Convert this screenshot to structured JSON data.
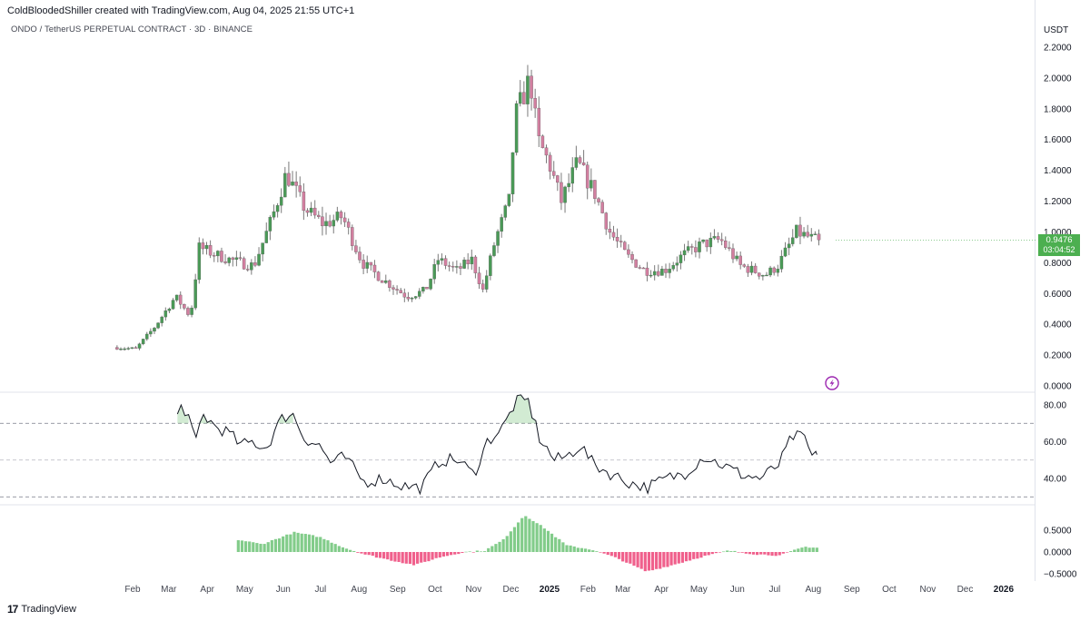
{
  "header": {
    "credit": "ColdBloodedShiller created with TradingView.com, Aug 04, 2025 21:55 UTC+1",
    "symbol": "ONDO / TetherUS PERPETUAL CONTRACT · 3D · BINANCE"
  },
  "footer": {
    "brand": "TradingView",
    "logo_glyph": "17"
  },
  "price_axis": {
    "unit": "USDT",
    "ticks": [
      "2.2000",
      "2.0000",
      "1.8000",
      "1.6000",
      "1.4000",
      "1.2000",
      "1.0000",
      "0.8000",
      "0.6000",
      "0.4000",
      "0.2000",
      "0.0000"
    ]
  },
  "last_price": {
    "value": "0.9476",
    "countdown": "03:04:52",
    "color": "#4caf50"
  },
  "colors": {
    "up": "#4a9a57",
    "down": "#d27fa0",
    "wick": "#7a7a7a",
    "osc_line": "#131722",
    "hist_up": "#82cc8a",
    "hist_down": "#f0608c",
    "badge": "#4caf50",
    "lightning": "#9c27b0"
  },
  "time_axis": {
    "labels": [
      {
        "t": "Feb",
        "bold": false
      },
      {
        "t": "Mar",
        "bold": false
      },
      {
        "t": "Apr",
        "bold": false
      },
      {
        "t": "May",
        "bold": false
      },
      {
        "t": "Jun",
        "bold": false
      },
      {
        "t": "Jul",
        "bold": false
      },
      {
        "t": "Aug",
        "bold": false
      },
      {
        "t": "Sep",
        "bold": false
      },
      {
        "t": "Oct",
        "bold": false
      },
      {
        "t": "Nov",
        "bold": false
      },
      {
        "t": "Dec",
        "bold": false
      },
      {
        "t": "2025",
        "bold": true
      },
      {
        "t": "Feb",
        "bold": false
      },
      {
        "t": "Mar",
        "bold": false
      },
      {
        "t": "Apr",
        "bold": false
      },
      {
        "t": "May",
        "bold": false
      },
      {
        "t": "Jun",
        "bold": false
      },
      {
        "t": "Jul",
        "bold": false
      },
      {
        "t": "Aug",
        "bold": false
      },
      {
        "t": "Sep",
        "bold": false
      },
      {
        "t": "Oct",
        "bold": false
      },
      {
        "t": "Nov",
        "bold": false
      },
      {
        "t": "Dec",
        "bold": false
      },
      {
        "t": "2026",
        "bold": true
      }
    ]
  },
  "oscillator_axis": {
    "ticks": [
      "80.00",
      "60.00",
      "40.00"
    ],
    "levels": [
      70,
      50,
      30
    ]
  },
  "histogram_axis": {
    "ticks": [
      "0.5000",
      "0.0000",
      "−0.5000"
    ]
  },
  "chart_data": [
    {
      "type": "candlestick",
      "title": "ONDO / TetherUS PERPETUAL CONTRACT · 3D · BINANCE",
      "ylabel": "USDT",
      "ylim": [
        0,
        2.2
      ],
      "x_range": [
        "2024-01-18",
        "2026-01-01"
      ],
      "anchors": [
        [
          "2024-01-18",
          0.25
        ],
        [
          "2024-02-05",
          0.24
        ],
        [
          "2024-02-20",
          0.38
        ],
        [
          "2024-03-08",
          0.58
        ],
        [
          "2024-03-20",
          0.45
        ],
        [
          "2024-03-27",
          0.9
        ],
        [
          "2024-04-10",
          0.85
        ],
        [
          "2024-04-28",
          0.8
        ],
        [
          "2024-05-10",
          0.78
        ],
        [
          "2024-05-25",
          1.1
        ],
        [
          "2024-06-05",
          1.38
        ],
        [
          "2024-06-20",
          1.15
        ],
        [
          "2024-07-05",
          1.05
        ],
        [
          "2024-07-20",
          1.1
        ],
        [
          "2024-08-05",
          0.8
        ],
        [
          "2024-08-20",
          0.7
        ],
        [
          "2024-09-10",
          0.58
        ],
        [
          "2024-09-25",
          0.62
        ],
        [
          "2024-10-05",
          0.82
        ],
        [
          "2024-10-20",
          0.75
        ],
        [
          "2024-11-01",
          0.82
        ],
        [
          "2024-11-10",
          0.62
        ],
        [
          "2024-11-20",
          0.95
        ],
        [
          "2024-12-01",
          1.2
        ],
        [
          "2024-12-06",
          1.75
        ],
        [
          "2024-12-18",
          2.0
        ],
        [
          "2024-12-24",
          1.6
        ],
        [
          "2025-01-02",
          1.45
        ],
        [
          "2025-01-12",
          1.2
        ],
        [
          "2025-01-25",
          1.45
        ],
        [
          "2025-02-08",
          1.25
        ],
        [
          "2025-02-20",
          1.0
        ],
        [
          "2025-03-05",
          0.85
        ],
        [
          "2025-03-20",
          0.75
        ],
        [
          "2025-04-05",
          0.75
        ],
        [
          "2025-04-20",
          0.85
        ],
        [
          "2025-05-05",
          0.92
        ],
        [
          "2025-05-20",
          0.95
        ],
        [
          "2025-06-05",
          0.78
        ],
        [
          "2025-06-25",
          0.72
        ],
        [
          "2025-07-05",
          0.78
        ],
        [
          "2025-07-20",
          1.0
        ],
        [
          "2025-08-04",
          0.9476
        ]
      ],
      "last_value": 0.9476
    },
    {
      "type": "line",
      "ylim": [
        25,
        85
      ],
      "y_ticks": [
        80,
        60,
        40
      ],
      "level_lines": [
        70,
        50,
        30
      ],
      "anchors": [
        [
          "2024-03-08",
          75
        ],
        [
          "2024-03-12",
          80
        ],
        [
          "2024-03-18",
          72
        ],
        [
          "2024-03-22",
          57
        ],
        [
          "2024-03-28",
          75
        ],
        [
          "2024-04-08",
          68
        ],
        [
          "2024-04-18",
          65
        ],
        [
          "2024-04-28",
          58
        ],
        [
          "2024-05-08",
          60
        ],
        [
          "2024-05-18",
          56
        ],
        [
          "2024-05-30",
          72
        ],
        [
          "2024-06-08",
          76
        ],
        [
          "2024-06-18",
          62
        ],
        [
          "2024-06-30",
          58
        ],
        [
          "2024-07-10",
          48
        ],
        [
          "2024-07-20",
          52
        ],
        [
          "2024-08-05",
          38
        ],
        [
          "2024-08-20",
          40
        ],
        [
          "2024-09-05",
          36
        ],
        [
          "2024-09-20",
          35
        ],
        [
          "2024-10-05",
          50
        ],
        [
          "2024-10-20",
          50
        ],
        [
          "2024-11-01",
          42
        ],
        [
          "2024-11-12",
          60
        ],
        [
          "2024-11-25",
          68
        ],
        [
          "2024-12-05",
          82
        ],
        [
          "2024-12-15",
          82
        ],
        [
          "2024-12-24",
          62
        ],
        [
          "2025-01-05",
          50
        ],
        [
          "2025-01-15",
          52
        ],
        [
          "2025-01-26",
          58
        ],
        [
          "2025-02-05",
          48
        ],
        [
          "2025-02-18",
          43
        ],
        [
          "2025-03-05",
          38
        ],
        [
          "2025-03-20",
          35
        ],
        [
          "2025-04-05",
          40
        ],
        [
          "2025-04-20",
          43
        ],
        [
          "2025-05-05",
          52
        ],
        [
          "2025-05-18",
          48
        ],
        [
          "2025-06-05",
          42
        ],
        [
          "2025-06-20",
          40
        ],
        [
          "2025-07-05",
          48
        ],
        [
          "2025-07-15",
          63
        ],
        [
          "2025-07-25",
          62
        ],
        [
          "2025-08-01",
          50
        ],
        [
          "2025-08-04",
          53
        ]
      ]
    },
    {
      "type": "bar",
      "ylim": [
        -0.55,
        0.75
      ],
      "y_ticks": [
        0.5,
        0.0,
        -0.5
      ],
      "anchors": [
        [
          "2024-04-26",
          0.28
        ],
        [
          "2024-05-15",
          0.18
        ],
        [
          "2024-06-10",
          0.45
        ],
        [
          "2024-06-30",
          0.35
        ],
        [
          "2024-07-20",
          0.1
        ],
        [
          "2024-08-05",
          -0.05
        ],
        [
          "2024-08-25",
          -0.18
        ],
        [
          "2024-09-15",
          -0.3
        ],
        [
          "2024-10-05",
          -0.12
        ],
        [
          "2024-10-25",
          0.0
        ],
        [
          "2024-11-10",
          0.03
        ],
        [
          "2024-11-25",
          0.28
        ],
        [
          "2024-12-12",
          0.85
        ],
        [
          "2024-12-28",
          0.55
        ],
        [
          "2025-01-15",
          0.15
        ],
        [
          "2025-02-05",
          0.05
        ],
        [
          "2025-02-25",
          -0.15
        ],
        [
          "2025-03-20",
          -0.45
        ],
        [
          "2025-04-10",
          -0.3
        ],
        [
          "2025-05-05",
          -0.1
        ],
        [
          "2025-05-25",
          0.03
        ],
        [
          "2025-06-15",
          -0.05
        ],
        [
          "2025-07-05",
          -0.08
        ],
        [
          "2025-07-25",
          0.12
        ],
        [
          "2025-08-04",
          0.1
        ]
      ]
    }
  ]
}
